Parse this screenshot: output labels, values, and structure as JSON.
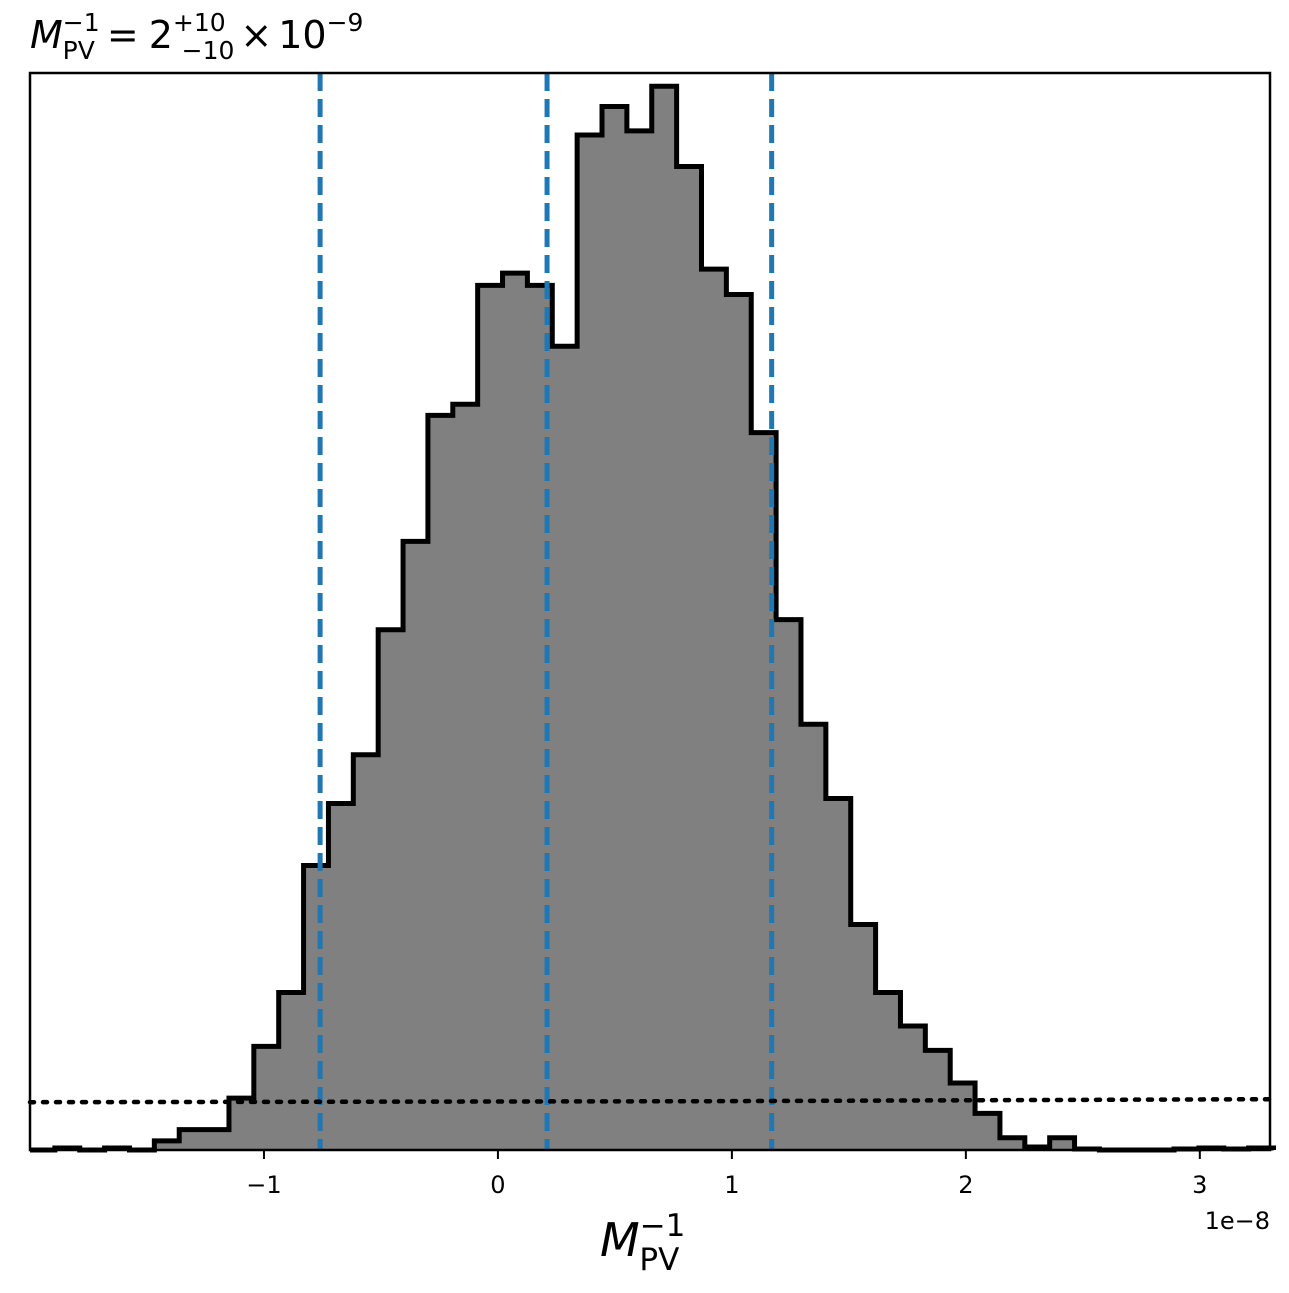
{
  "chart_data": {
    "type": "histogram",
    "title": {
      "symbol": "M",
      "subscript": "PV",
      "superscript": "−1",
      "equals": "=",
      "value": "2",
      "upper_err": "+10",
      "lower_err": "−10",
      "times": "×",
      "power_base": "10",
      "power_exp": "−9"
    },
    "xlabel": {
      "symbol": "M",
      "subscript": "PV",
      "superscript": "−1"
    },
    "offset_label": "1e−8",
    "x_scale": 1e-08,
    "xlim": [
      -2.0,
      3.3
    ],
    "ylim": [
      0,
      1.06
    ],
    "x_ticks": [
      -1,
      0,
      1,
      2,
      3
    ],
    "x_tick_labels": [
      "−1",
      "0",
      "1",
      "2",
      "3"
    ],
    "bins": {
      "start": -2.0,
      "width": 0.1063,
      "counts": [
        0,
        0.002,
        0,
        0.002,
        0,
        0.009,
        0.02,
        0.02,
        0.051,
        0.102,
        0.155,
        0.28,
        0.341,
        0.389,
        0.512,
        0.599,
        0.723,
        0.734,
        0.851,
        0.863,
        0.851,
        0.791,
        0.999,
        1.027,
        1.003,
        1.047,
        0.968,
        0.867,
        0.842,
        0.706,
        0.522,
        0.419,
        0.346,
        0.222,
        0.155,
        0.122,
        0.098,
        0.066,
        0.036,
        0.012,
        0.003,
        0.012,
        0.001,
        0,
        0,
        0,
        0.001,
        0.002,
        0.001,
        0.002
      ]
    },
    "fill_color": "#808080",
    "edge_color": "#000000",
    "quantile_lines": {
      "x": [
        -0.76,
        0.21,
        1.17
      ],
      "color": "#1f77b4",
      "style": "dashed"
    },
    "reference_line": {
      "x": [
        -2.0,
        0.9,
        3.3
      ],
      "y": [
        0.047,
        0.048,
        0.05
      ],
      "color": "#000000",
      "style": "dotted"
    }
  }
}
